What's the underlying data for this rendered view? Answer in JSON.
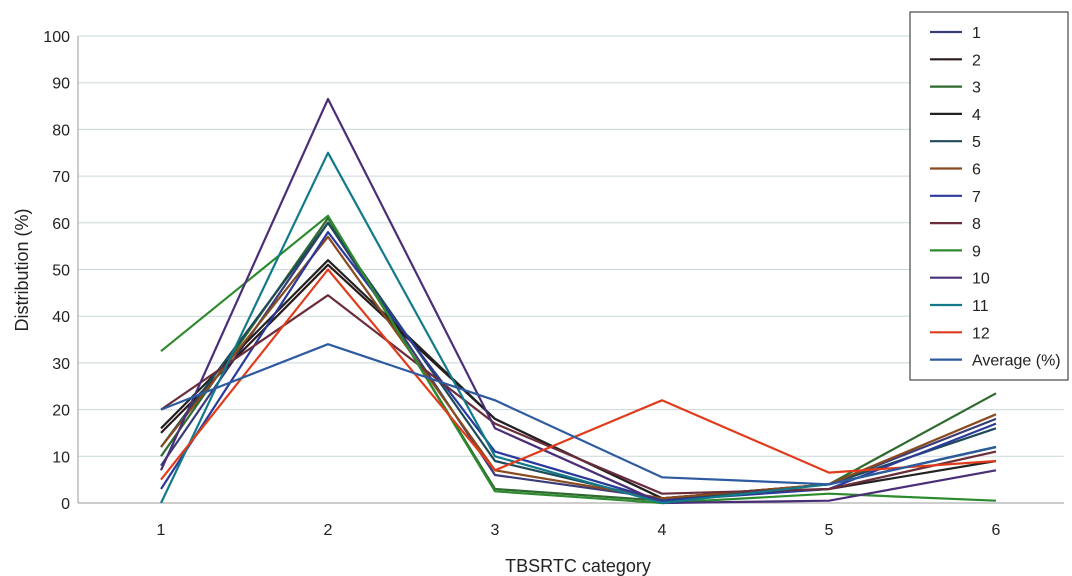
{
  "chart_data": {
    "type": "line",
    "x": [
      1,
      2,
      3,
      4,
      5,
      6
    ],
    "xlabel": "TBSRTC category",
    "ylabel": "Distribution (%)",
    "ylim": [
      0,
      100
    ],
    "yticks": [
      0,
      10,
      20,
      30,
      40,
      50,
      60,
      70,
      80,
      90,
      100
    ],
    "grid": "horizontal",
    "legend_position": "top-right",
    "series": [
      {
        "name": "1",
        "color": "#3a3c78",
        "values": [
          8,
          60,
          6,
          1,
          4,
          18
        ]
      },
      {
        "name": "2",
        "color": "#2c1a1a",
        "values": [
          15,
          51,
          18,
          1,
          4,
          12
        ]
      },
      {
        "name": "3",
        "color": "#2e6a2e",
        "values": [
          10,
          61,
          3,
          0.5,
          4,
          23.5
        ]
      },
      {
        "name": "4",
        "color": "#222222",
        "values": [
          16,
          52,
          18,
          1,
          3,
          9
        ]
      },
      {
        "name": "5",
        "color": "#1e4a5a",
        "values": [
          12,
          60,
          9,
          0.5,
          4,
          16
        ]
      },
      {
        "name": "6",
        "color": "#8a4a20",
        "values": [
          12,
          57,
          7,
          1,
          4,
          19
        ]
      },
      {
        "name": "7",
        "color": "#2a3a9a",
        "values": [
          3,
          58,
          11,
          0.5,
          3,
          17
        ]
      },
      {
        "name": "8",
        "color": "#6a2e3a",
        "values": [
          20,
          44.5,
          17,
          2,
          3,
          11
        ]
      },
      {
        "name": "9",
        "color": "#2e8a2e",
        "values": [
          32.5,
          61.5,
          2.5,
          0,
          2,
          0.5
        ]
      },
      {
        "name": "10",
        "color": "#4a2e78",
        "values": [
          7,
          86.5,
          16,
          0,
          0.5,
          7
        ]
      },
      {
        "name": "11",
        "color": "#137a8a",
        "values": [
          0,
          75,
          10,
          0,
          4,
          12
        ]
      },
      {
        "name": "12",
        "color": "#e03c1c",
        "values": [
          5,
          50,
          7,
          22,
          6.5,
          9
        ]
      },
      {
        "name": "Average (%)",
        "color": "#2e5aa0",
        "values": [
          20,
          34,
          22,
          5.5,
          4,
          12
        ]
      }
    ]
  }
}
